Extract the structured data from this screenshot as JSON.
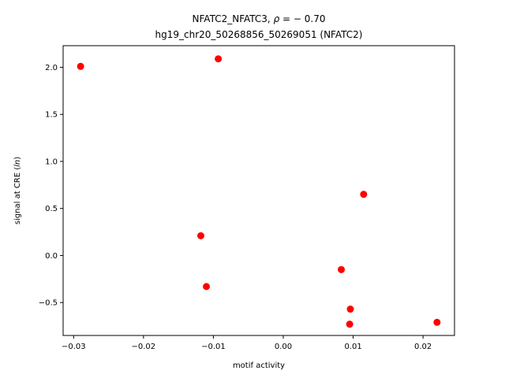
{
  "chart_data": {
    "type": "scatter",
    "title_line1_prefix": "NFATC2_NFATC3, ",
    "title_line1_rho": "ρ",
    "title_line1_suffix": " = − 0.70",
    "title_line2": "hg19_chr20_50268856_50269051 (NFATC2)",
    "xlabel": "motif activity",
    "ylabel_prefix": "signal at CRE (",
    "ylabel_italic": "ln",
    "ylabel_suffix": ")",
    "xlim": [
      -0.0315,
      0.0245
    ],
    "ylim": [
      -0.85,
      2.23
    ],
    "xticks": [
      -0.03,
      -0.02,
      -0.01,
      0.0,
      0.01,
      0.02
    ],
    "xtick_labels": [
      "−0.03",
      "−0.02",
      "−0.01",
      "0.00",
      "0.01",
      "0.02"
    ],
    "yticks": [
      -0.5,
      0.0,
      0.5,
      1.0,
      1.5,
      2.0
    ],
    "ytick_labels": [
      "−0.5",
      "0.0",
      "0.5",
      "1.0",
      "1.5",
      "2.0"
    ],
    "grid": false,
    "marker_color": "#ff0000",
    "points": [
      {
        "x": -0.029,
        "y": 2.01
      },
      {
        "x": -0.0093,
        "y": 2.09
      },
      {
        "x": 0.0115,
        "y": 0.65
      },
      {
        "x": -0.0118,
        "y": 0.21
      },
      {
        "x": -0.011,
        "y": -0.33
      },
      {
        "x": 0.0083,
        "y": -0.15
      },
      {
        "x": 0.0096,
        "y": -0.57
      },
      {
        "x": 0.0095,
        "y": -0.73
      },
      {
        "x": 0.022,
        "y": -0.71
      }
    ]
  }
}
